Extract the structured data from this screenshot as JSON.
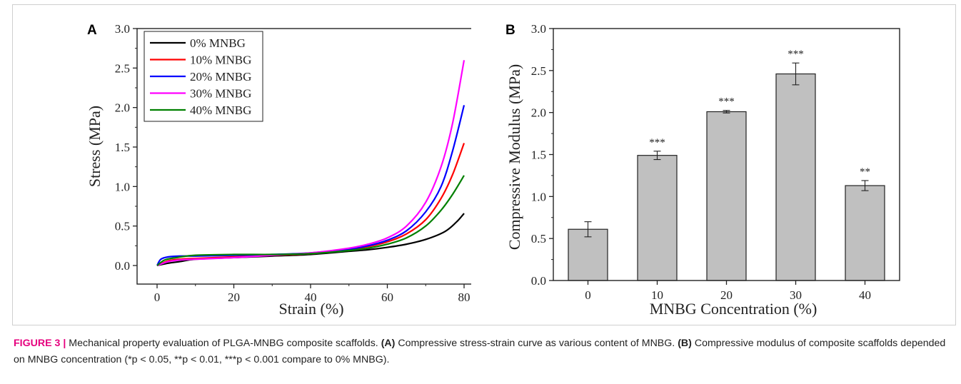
{
  "chart_data": [
    {
      "type": "line",
      "panel": "A",
      "xlabel": "Strain (%)",
      "ylabel": "Stress (MPa)",
      "xlim": [
        -5,
        83
      ],
      "ylim": [
        -0.1,
        3.0
      ],
      "xticks": [
        0,
        20,
        40,
        60,
        80
      ],
      "yticks": [
        0.0,
        0.5,
        1.0,
        1.5,
        2.0,
        2.5,
        3.0
      ],
      "legend_position": "top-left",
      "series": [
        {
          "name": "0% MNBG",
          "color": "#000000",
          "x": [
            0,
            3,
            6,
            10,
            20,
            30,
            40,
            50,
            55,
            60,
            65,
            70,
            75,
            78,
            80
          ],
          "y": [
            0.0,
            0.03,
            0.05,
            0.08,
            0.1,
            0.12,
            0.14,
            0.18,
            0.2,
            0.23,
            0.27,
            0.33,
            0.43,
            0.55,
            0.66
          ]
        },
        {
          "name": "10% MNBG",
          "color": "#ff0000",
          "x": [
            0,
            3,
            6,
            10,
            20,
            30,
            40,
            50,
            55,
            60,
            65,
            70,
            74,
            77,
            80
          ],
          "y": [
            0.0,
            0.06,
            0.08,
            0.09,
            0.11,
            0.13,
            0.15,
            0.2,
            0.24,
            0.3,
            0.4,
            0.58,
            0.85,
            1.15,
            1.55
          ]
        },
        {
          "name": "20% MNBG",
          "color": "#0000ff",
          "x": [
            0,
            1,
            3,
            6,
            10,
            20,
            30,
            40,
            50,
            55,
            60,
            65,
            70,
            74,
            77,
            80
          ],
          "y": [
            0.0,
            0.08,
            0.11,
            0.12,
            0.12,
            0.13,
            0.14,
            0.16,
            0.21,
            0.25,
            0.32,
            0.44,
            0.68,
            1.0,
            1.45,
            2.03
          ]
        },
        {
          "name": "30% MNBG",
          "color": "#ff00ff",
          "x": [
            0,
            3,
            6,
            10,
            20,
            30,
            40,
            50,
            55,
            60,
            65,
            70,
            74,
            77,
            80
          ],
          "y": [
            0.0,
            0.05,
            0.07,
            0.08,
            0.1,
            0.13,
            0.16,
            0.22,
            0.27,
            0.35,
            0.5,
            0.8,
            1.25,
            1.8,
            2.6
          ]
        },
        {
          "name": "40% MNBG",
          "color": "#008000",
          "x": [
            0,
            2,
            5,
            10,
            20,
            30,
            40,
            50,
            55,
            60,
            65,
            70,
            74,
            77,
            80
          ],
          "y": [
            0.0,
            0.07,
            0.1,
            0.13,
            0.14,
            0.14,
            0.15,
            0.19,
            0.22,
            0.27,
            0.35,
            0.5,
            0.7,
            0.9,
            1.14
          ]
        }
      ]
    },
    {
      "type": "bar",
      "panel": "B",
      "xlabel": "MNBG Concentration (%)",
      "ylabel": "Compressive Modulus (MPa)",
      "ylim": [
        0.0,
        3.0
      ],
      "yticks": [
        0.0,
        0.5,
        1.0,
        1.5,
        2.0,
        2.5,
        3.0
      ],
      "bar_color": "#c0c0c0",
      "categories": [
        "0",
        "10",
        "20",
        "30",
        "40"
      ],
      "values": [
        0.61,
        1.49,
        2.01,
        2.46,
        1.13
      ],
      "errors": [
        0.09,
        0.05,
        0.015,
        0.13,
        0.06
      ],
      "significance": [
        "",
        "***",
        "***",
        "***",
        "**"
      ]
    }
  ],
  "caption": {
    "head": "FIGURE 3 |",
    "text1": " Mechanical property evaluation of PLGA-MNBG composite scaffolds. ",
    "a_label": "(A)",
    "text2": " Compressive stress-strain curve as various content of MNBG. ",
    "b_label": "(B)",
    "text3": " Compressive modulus of composite scaffolds depended on MNBG concentration (*p < 0.05, **p < 0.01, ***p < 0.001 compare to 0% MNBG)."
  }
}
